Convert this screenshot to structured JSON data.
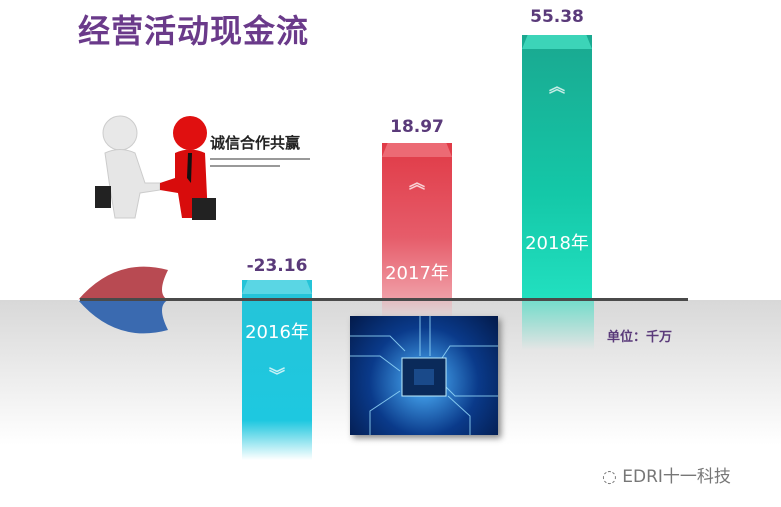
{
  "title": "经营活动现金流",
  "unit_label": "单位：千万",
  "watermark": "EDRI十一科技",
  "handshake_caption": "诚信合作共赢",
  "colors": {
    "title": "#6a3a8a",
    "bar_2016": "#1ec8d8",
    "bar_2017": "#e03a46",
    "bar_2018": "#14c8a8"
  },
  "chart_data": {
    "type": "bar",
    "categories": [
      "2016年",
      "2017年",
      "2018年"
    ],
    "values": [
      -23.16,
      18.97,
      55.38
    ],
    "value_labels": [
      "-23.16",
      "18.97",
      "55.38"
    ],
    "unit": "千万"
  }
}
